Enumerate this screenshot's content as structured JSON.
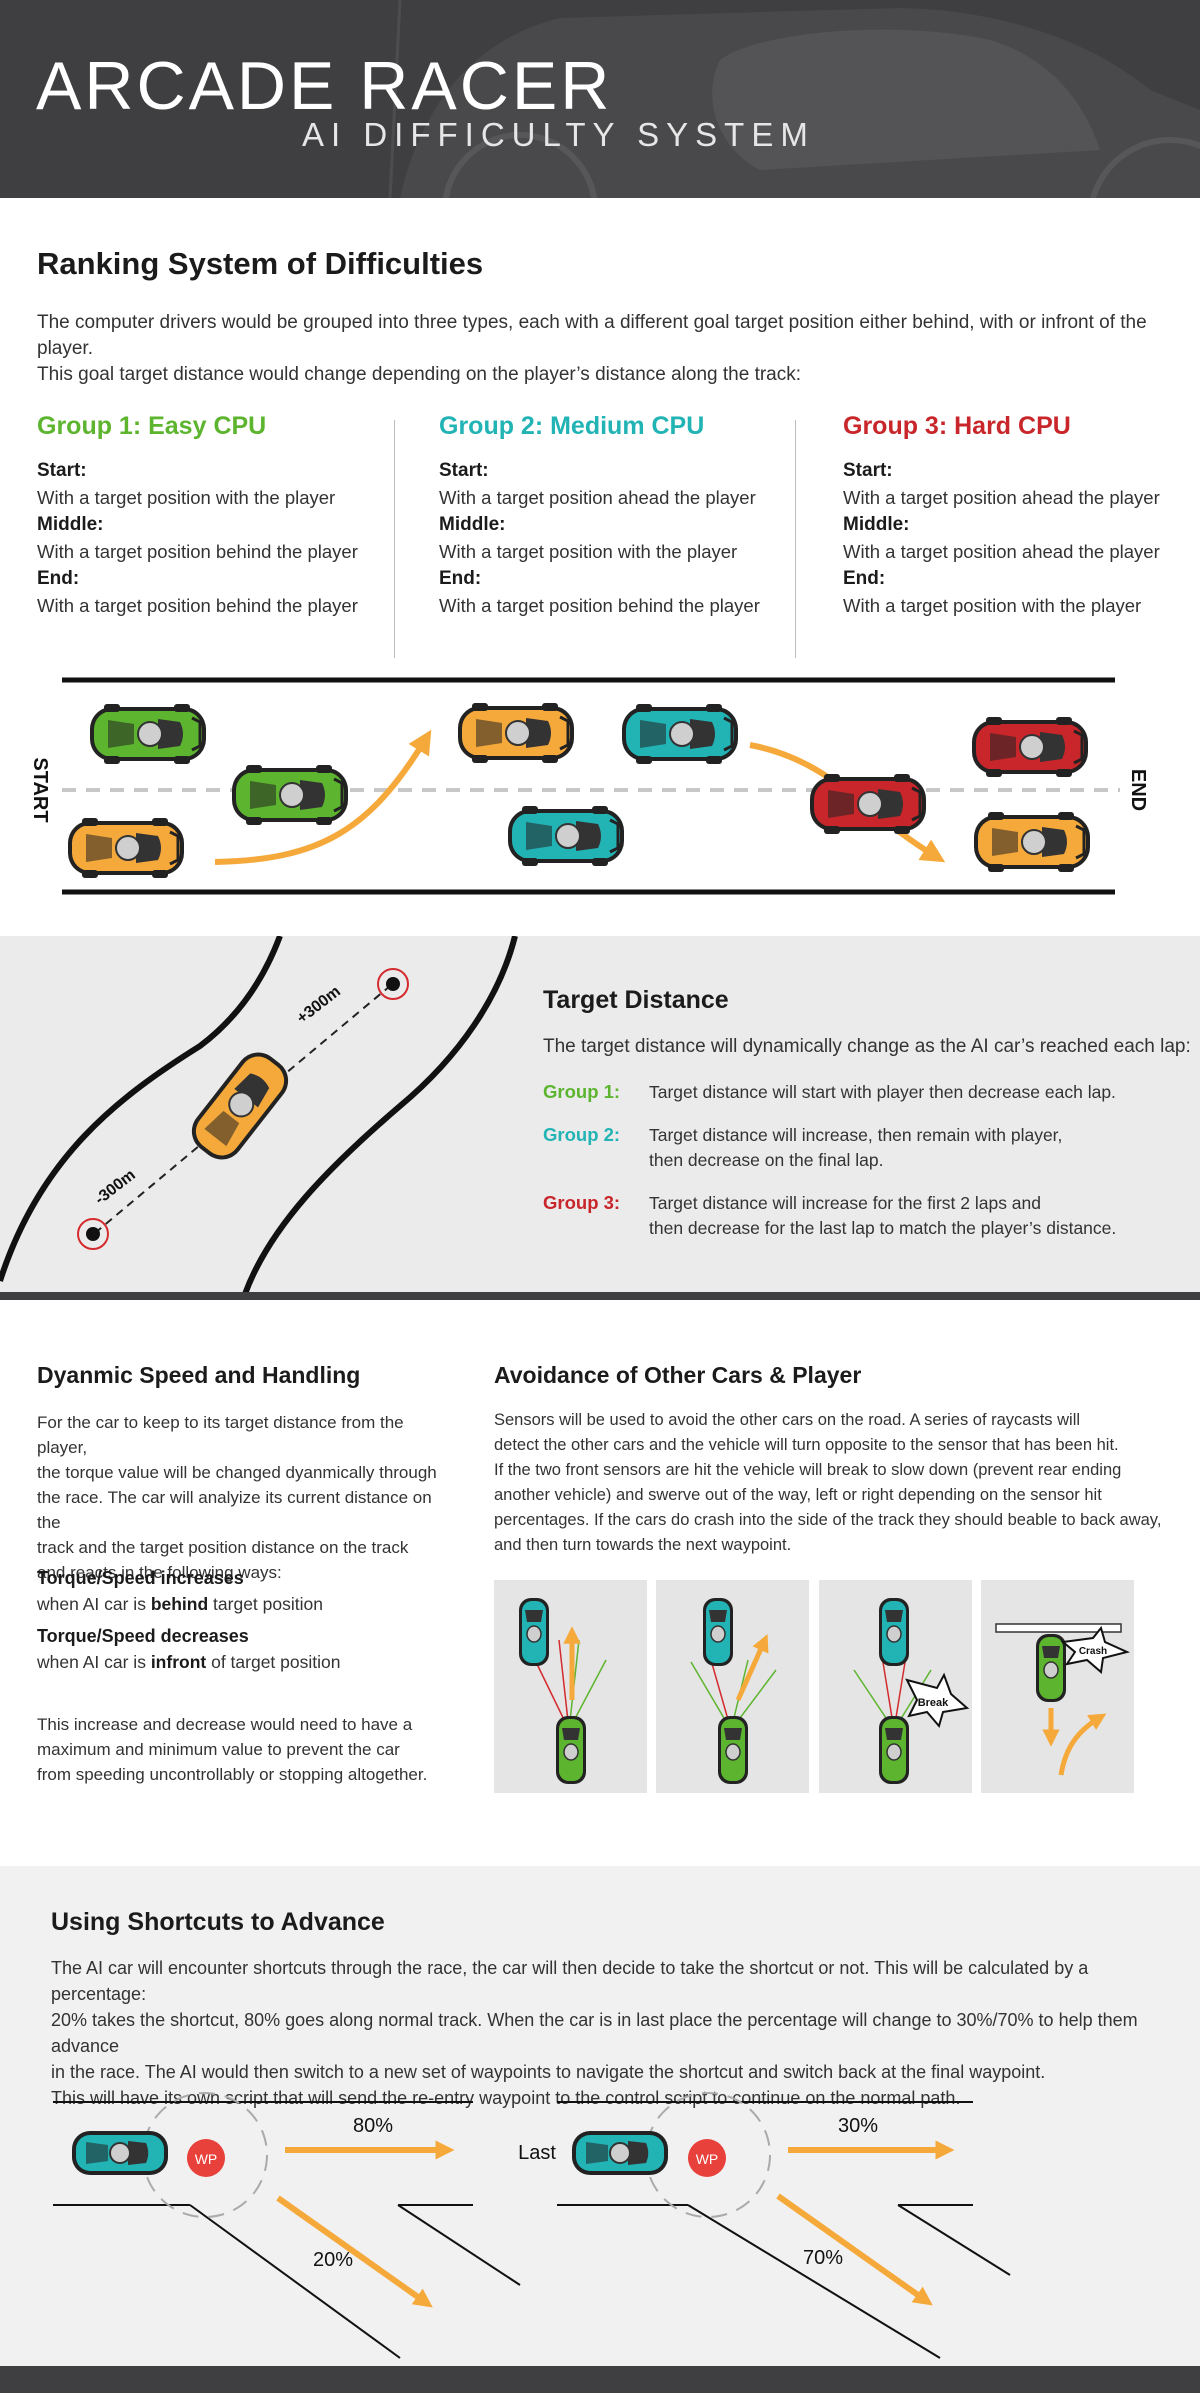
{
  "header": {
    "title": "ARCADE RACER",
    "subtitle": "AI DIFFICULTY SYSTEM"
  },
  "ranking": {
    "title": "Ranking System of Difficulties",
    "intro_line1": "The computer drivers would be grouped into three types, each with a different goal target position either behind, with or infront of the player.",
    "intro_line2": "This goal target distance would change depending on the player’s distance along the track:",
    "groups": [
      {
        "title": "Group 1: Easy CPU",
        "color": "#5db52f",
        "start_label": "Start:",
        "start": "With a target position with the player",
        "middle_label": "Middle:",
        "middle": "With a target position behind the player",
        "end_label": "End:",
        "end": "With a target position behind the player"
      },
      {
        "title": "Group 2: Medium CPU",
        "color": "#22b3b5",
        "start_label": "Start:",
        "start": "With a target position ahead the player",
        "middle_label": "Middle:",
        "middle": "With a target position with the player",
        "end_label": "End:",
        "end": "With a target position behind the player"
      },
      {
        "title": "Group 3: Hard CPU",
        "color": "#c8262a",
        "start_label": "Start:",
        "start": "With a target position ahead the player",
        "middle_label": "Middle:",
        "middle": "With a target position ahead the player",
        "end_label": "End:",
        "end": "With a target position with the player"
      }
    ],
    "track_start": "START",
    "track_end": "END"
  },
  "target_distance": {
    "title": "Target Distance",
    "intro": "The target distance will dynamically change as the AI car’s reached each lap:",
    "plus_label": "+300m",
    "minus_label": "-300m",
    "rows": [
      {
        "label": "Group 1:",
        "line1": "Target distance will start with player then decrease each lap.",
        "line2": ""
      },
      {
        "label": "Group 2:",
        "line1": "Target distance will increase, then remain with player,",
        "line2": "then decrease on the final lap."
      },
      {
        "label": "Group 3:",
        "line1": "Target distance will increase for the first 2 laps and",
        "line2": "then decrease for the last lap to match the player’s distance."
      }
    ]
  },
  "dynamic": {
    "title": "Dyanmic Speed and Handling",
    "para": [
      "For the car to keep to its target distance from the player,",
      "the torque value will be changed dyanmically through",
      "the race. The car will analyize its current distance on the",
      "track and the target position distance on the track",
      "and reacts in the following ways:"
    ],
    "inc_title": "Torque/Speed increases",
    "inc_pre": "when AI car is ",
    "inc_bold": "behind",
    "inc_post": " target position",
    "dec_title": "Torque/Speed decreases",
    "dec_pre": "when AI car is ",
    "dec_bold": "infront",
    "dec_post": " of target position",
    "end_para": [
      "This increase and decrease would need to have a",
      "maximum and minimum value to prevent the car",
      "from speeding uncontrollably or stopping altogether."
    ]
  },
  "avoidance": {
    "title": "Avoidance of Other Cars & Player",
    "para": [
      "Sensors will be used to avoid the other cars on the road. A series of raycasts will",
      "detect the other cars and the vehicle will turn opposite to the sensor that has been hit.",
      "If the two front sensors are hit the vehicle will break to slow down (prevent rear ending",
      "another vehicle) and swerve out of the way, left or right depending on the sensor hit",
      "percentages. If the cars do crash into the side of the track they should beable to back away,",
      "and then turn towards the next waypoint."
    ],
    "break_label": "Break",
    "crash_label": "Crash"
  },
  "shortcuts": {
    "title": "Using Shortcuts to Advance",
    "para": [
      "The AI car will encounter shortcuts through the race, the car will then decide to take the shortcut or not. This will be calculated by a percentage:",
      "20% takes the shortcut, 80% goes along normal track. When the car is in last place the percentage will change to 30%/70% to help them advance",
      "in the race. The AI would then switch to a new set of waypoints to navigate the shortcut and switch back at the final waypoint.",
      "This will have its own script that will send the re-entry waypoint to the control script to continue on the normal path."
    ],
    "wp_label": "WP",
    "diagram1_main": "80%",
    "diagram1_short": "20%",
    "diagram2_prefix": "Last",
    "diagram2_main": "30%",
    "diagram2_short": "70%"
  },
  "colors": {
    "header_bg": "#3f3f41",
    "green": "#5db52f",
    "teal": "#22b3b5",
    "red": "#c8262a",
    "orange": "#f6a93b",
    "panel_bg": "#ebebeb"
  }
}
